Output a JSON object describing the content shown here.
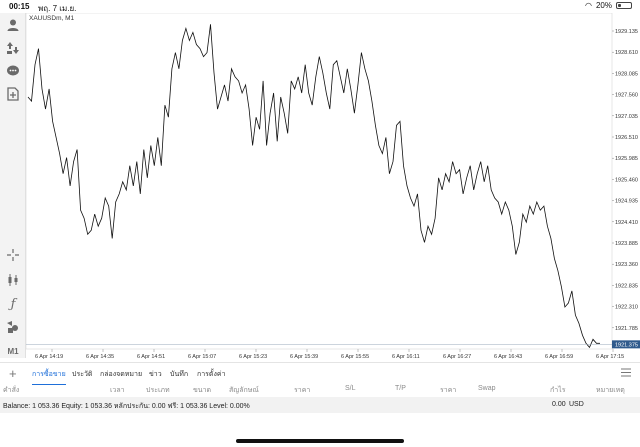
{
  "status": {
    "time": "00:15",
    "date": "พฤ. 7 เม.ย.",
    "battery": "20%",
    "battery_fraction": 0.2
  },
  "symbol": "XAUUSDm, M1",
  "chart": {
    "current_price": "1921.375",
    "price_labels": [
      "1929.135",
      "1928.610",
      "1928.085",
      "1927.560",
      "1927.035",
      "1926.510",
      "1925.985",
      "1925.460",
      "1924.935",
      "1924.410",
      "1923.885",
      "1923.360",
      "1922.835",
      "1922.310",
      "1921.785"
    ],
    "time_labels": [
      "6 Apr 14:19",
      "6 Apr 14:35",
      "6 Apr 14:51",
      "6 Apr 15:07",
      "6 Apr 15:23",
      "6 Apr 15:39",
      "6 Apr 15:55",
      "6 Apr 16:11",
      "6 Apr 16:27",
      "6 Apr 16:43",
      "6 Apr 16:59",
      "6 Apr 17:15"
    ],
    "line_color": "#111111",
    "current_color": "#2f5a8c"
  },
  "chart_data": {
    "type": "line",
    "x_start": "6 Apr 14:11",
    "x_step_minutes": 1,
    "ylim": [
      1921.5,
      1929.6
    ],
    "values": [
      1927.5,
      1927.4,
      1928.3,
      1928.7,
      1927.7,
      1927.2,
      1927.7,
      1926.9,
      1926.5,
      1926.1,
      1925.6,
      1926.0,
      1925.3,
      1925.9,
      1926.2,
      1924.7,
      1924.5,
      1924.1,
      1924.2,
      1924.6,
      1924.3,
      1924.5,
      1925.0,
      1924.8,
      1924.0,
      1924.9,
      1925.1,
      1925.4,
      1925.2,
      1925.8,
      1925.3,
      1925.9,
      1925.1,
      1926.2,
      1925.5,
      1926.3,
      1925.8,
      1926.5,
      1925.8,
      1927.3,
      1927.0,
      1928.2,
      1928.6,
      1928.2,
      1928.9,
      1929.2,
      1928.9,
      1929.1,
      1928.8,
      1928.7,
      1928.5,
      1928.6,
      1929.3,
      1928.1,
      1927.2,
      1927.5,
      1927.8,
      1927.4,
      1928.2,
      1928.0,
      1927.9,
      1927.6,
      1927.8,
      1927.2,
      1926.3,
      1927.0,
      1926.7,
      1927.9,
      1926.3,
      1927.1,
      1927.6,
      1926.4,
      1927.5,
      1927.1,
      1926.6,
      1927.9,
      1927.7,
      1928.0,
      1927.6,
      1928.3,
      1927.6,
      1927.3,
      1928.0,
      1928.5,
      1928.1,
      1927.6,
      1927.2,
      1928.3,
      1928.4,
      1928.0,
      1927.6,
      1928.2,
      1927.7,
      1927.1,
      1927.8,
      1928.6,
      1928.2,
      1927.9,
      1927.4,
      1926.8,
      1926.3,
      1926.1,
      1926.5,
      1925.6,
      1925.9,
      1926.8,
      1926.9,
      1925.8,
      1925.3,
      1925.0,
      1924.8,
      1925.1,
      1924.2,
      1923.9,
      1924.3,
      1924.1,
      1924.5,
      1925.5,
      1925.2,
      1925.6,
      1925.4,
      1925.9,
      1925.6,
      1925.7,
      1925.1,
      1925.5,
      1925.8,
      1925.2,
      1925.6,
      1925.9,
      1925.4,
      1925.8,
      1925.2,
      1925.0,
      1924.9,
      1924.6,
      1924.9,
      1924.7,
      1924.3,
      1923.6,
      1923.9,
      1924.6,
      1924.4,
      1924.8,
      1924.6,
      1924.9,
      1924.7,
      1924.8,
      1924.3,
      1924.0,
      1923.5,
      1923.2,
      1922.8,
      1922.3,
      1922.4,
      1922.7,
      1922.1,
      1921.9,
      1921.6,
      1921.4,
      1921.3,
      1921.5,
      1921.4,
      1921.4
    ],
    "xlabel": "",
    "ylabel": ""
  },
  "tabs": [
    {
      "label": "การซื้อขาย",
      "active": true
    },
    {
      "label": "ประวัติ",
      "active": false
    },
    {
      "label": "กล่องจดหมาย",
      "active": false
    },
    {
      "label": "ข่าว",
      "active": false
    },
    {
      "label": "บันทึก",
      "active": false
    },
    {
      "label": "การตั้งค่า",
      "active": false
    }
  ],
  "columns": [
    "คำสั่ง",
    "เวลา",
    "ประเภท",
    "ขนาด",
    "สัญลักษณ์",
    "ราคา",
    "S/L",
    "T/P",
    "ราคา",
    "Swap",
    "กำไร",
    "หมายเหตุ"
  ],
  "balance": {
    "text": "Balance: 1 053.36 Equity: 1 053.36 หลักประกัน: 0.00 ฟรี: 1 053.36 Level: 0.00%",
    "profit": "0.00",
    "currency": "USD"
  },
  "toolbar": {
    "timeframe": "M1",
    "icons": [
      "account-icon",
      "trade-icon",
      "chat-icon",
      "new-order-icon",
      "crosshair-icon",
      "candles-icon",
      "function-icon",
      "objects-icon",
      "timeframe-icon"
    ]
  }
}
